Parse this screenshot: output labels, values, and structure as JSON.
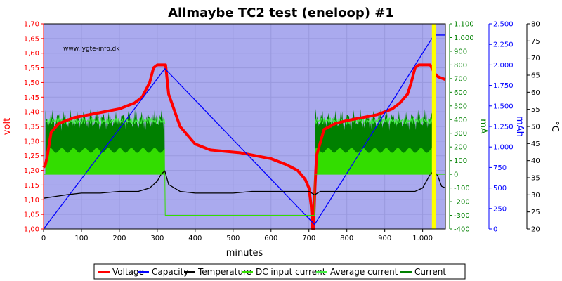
{
  "chart_data": {
    "type": "line",
    "title": "Allmaybe TC2 test (eneloop) #1",
    "watermark": "www.lygte-info.dk",
    "xlabel": "minutes",
    "xlim": [
      0,
      1060
    ],
    "x_ticks": [
      "0",
      "100",
      "200",
      "300",
      "400",
      "500",
      "600",
      "700",
      "800",
      "900",
      "1.000"
    ],
    "axes": {
      "volt": {
        "label": "volt",
        "color": "#ff0000",
        "range": [
          1.0,
          1.7
        ],
        "ticks": [
          "1,00",
          "1,05",
          "1,10",
          "1,15",
          "1,20",
          "1,25",
          "1,30",
          "1,35",
          "1,40",
          "1,45",
          "1,50",
          "1,55",
          "1,60",
          "1,65",
          "1,70"
        ]
      },
      "mA": {
        "label": "mA",
        "color": "#008000",
        "range": [
          -400,
          1100
        ],
        "ticks": [
          "-400",
          "-300",
          "-200",
          "-100",
          "0",
          "100",
          "200",
          "300",
          "400",
          "500",
          "600",
          "700",
          "800",
          "900",
          "1.000",
          "1.100"
        ]
      },
      "mAh": {
        "label": "mAh",
        "color": "#0000ff",
        "range": [
          0,
          2750
        ],
        "ticks": [
          "0",
          "250",
          "500",
          "750",
          "1.000",
          "1.250",
          "1.500",
          "1.750",
          "2.000",
          "2.250",
          "2.500"
        ]
      },
      "temp": {
        "label": "°C",
        "color": "#000000",
        "range": [
          20,
          80
        ],
        "ticks": [
          "20",
          "25",
          "30",
          "35",
          "40",
          "45",
          "50",
          "55",
          "60",
          "65",
          "70",
          "75",
          "80"
        ]
      }
    },
    "legend": [
      "Voltage",
      "Capacity",
      "Temperature",
      "DC input current",
      "Average current",
      "Current"
    ],
    "colors": {
      "plot_bg": "#aaaaee",
      "grid": "#9999dd",
      "voltage": "#ff0000",
      "capacity": "#0000ff",
      "temperature": "#000000",
      "dc_input": "#33dd00",
      "average": "#44ee44",
      "current": "#008000",
      "marker": "#ffff00"
    },
    "markers_x": [
      1030
    ],
    "series": [
      {
        "name": "Voltage",
        "axis": "volt",
        "x": [
          0,
          5,
          10,
          20,
          40,
          80,
          120,
          160,
          200,
          240,
          260,
          280,
          290,
          300,
          320,
          322,
          330,
          360,
          400,
          440,
          480,
          520,
          560,
          600,
          640,
          670,
          690,
          700,
          706,
          710,
          712,
          716,
          720,
          740,
          770,
          800,
          840,
          880,
          900,
          920,
          940,
          960,
          970,
          980,
          990,
          1000,
          1010,
          1020,
          1028,
          1032,
          1040,
          1060
        ],
        "y": [
          1.21,
          1.22,
          1.25,
          1.33,
          1.36,
          1.38,
          1.39,
          1.4,
          1.41,
          1.43,
          1.45,
          1.5,
          1.55,
          1.56,
          1.56,
          1.56,
          1.46,
          1.35,
          1.29,
          1.27,
          1.265,
          1.26,
          1.25,
          1.24,
          1.22,
          1.2,
          1.17,
          1.14,
          1.08,
          1.0,
          1.0,
          1.14,
          1.25,
          1.34,
          1.36,
          1.37,
          1.38,
          1.39,
          1.4,
          1.41,
          1.43,
          1.46,
          1.5,
          1.55,
          1.56,
          1.56,
          1.56,
          1.56,
          1.54,
          1.53,
          1.52,
          1.51
        ]
      },
      {
        "name": "Capacity",
        "axis": "mAh",
        "x": [
          0,
          320,
          715,
          1030,
          1060
        ],
        "y": [
          0,
          2150,
          60,
          2600,
          2600
        ]
      },
      {
        "name": "Temperature",
        "axis": "temp",
        "x": [
          0,
          30,
          60,
          100,
          150,
          200,
          250,
          280,
          300,
          310,
          320,
          325,
          330,
          360,
          400,
          450,
          500,
          550,
          600,
          650,
          700,
          715,
          730,
          800,
          900,
          980,
          1000,
          1010,
          1020,
          1030,
          1040,
          1050,
          1060
        ],
        "y": [
          29,
          29.5,
          30,
          30.5,
          30.5,
          31,
          31,
          32,
          34,
          36,
          37,
          35,
          33,
          31,
          30.5,
          30.5,
          30.5,
          31,
          31,
          31,
          31,
          30,
          31,
          31,
          31,
          31,
          32,
          34,
          36,
          37,
          35.5,
          32.5,
          32
        ]
      },
      {
        "name": "DC input current",
        "axis": "mA",
        "x": [
          0,
          320,
          321,
          715,
          716,
          1030,
          1031,
          1060
        ],
        "y": [
          0,
          0,
          -300,
          -300,
          0,
          0,
          0,
          0
        ]
      },
      {
        "name": "Average current",
        "axis": "mA",
        "x": [
          5,
          320,
          320.5,
          715,
          716,
          1060
        ],
        "y": [
          450,
          450,
          0,
          0,
          450,
          450
        ]
      },
      {
        "name": "Current",
        "axis": "mA",
        "x": [
          5,
          320,
          320.5,
          715,
          716,
          1030
        ],
        "y": [
          455,
          455,
          0,
          0,
          455,
          455
        ],
        "band_low": 0,
        "band_mid": 175,
        "band_high_min": 300,
        "band_high_max": 480
      }
    ]
  }
}
